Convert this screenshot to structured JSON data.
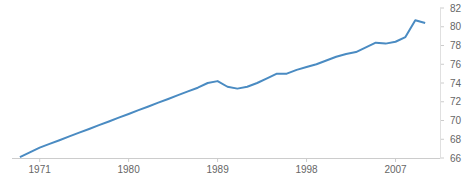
{
  "chart_data": {
    "type": "line",
    "x": [
      1969,
      1970,
      1971,
      1972,
      1973,
      1974,
      1975,
      1976,
      1977,
      1978,
      1979,
      1980,
      1981,
      1982,
      1983,
      1984,
      1985,
      1986,
      1987,
      1988,
      1989,
      1990,
      1991,
      1992,
      1993,
      1994,
      1995,
      1996,
      1997,
      1998,
      1999,
      2000,
      2001,
      2002,
      2003,
      2004,
      2005,
      2006,
      2007,
      2008,
      2009,
      2010
    ],
    "values": [
      66.1,
      66.6,
      67.1,
      67.5,
      67.9,
      68.3,
      68.7,
      69.1,
      69.5,
      69.9,
      70.3,
      70.7,
      71.1,
      71.5,
      71.9,
      72.3,
      72.7,
      73.1,
      73.5,
      74.0,
      74.2,
      73.6,
      73.4,
      73.6,
      74.0,
      74.5,
      75.0,
      75.0,
      75.4,
      75.7,
      76.0,
      76.4,
      76.8,
      77.1,
      77.3,
      77.8,
      78.3,
      78.2,
      78.4,
      78.9,
      80.7,
      80.4
    ],
    "color": "#4a8bc2",
    "xlim": [
      1968.2,
      2011.5
    ],
    "xticks": [
      1971,
      1980,
      1989,
      1998,
      2007
    ],
    "ylim": [
      66,
      82
    ],
    "yticks": [
      66,
      68,
      70,
      72,
      74,
      76,
      78,
      80,
      82
    ],
    "grid": false
  }
}
